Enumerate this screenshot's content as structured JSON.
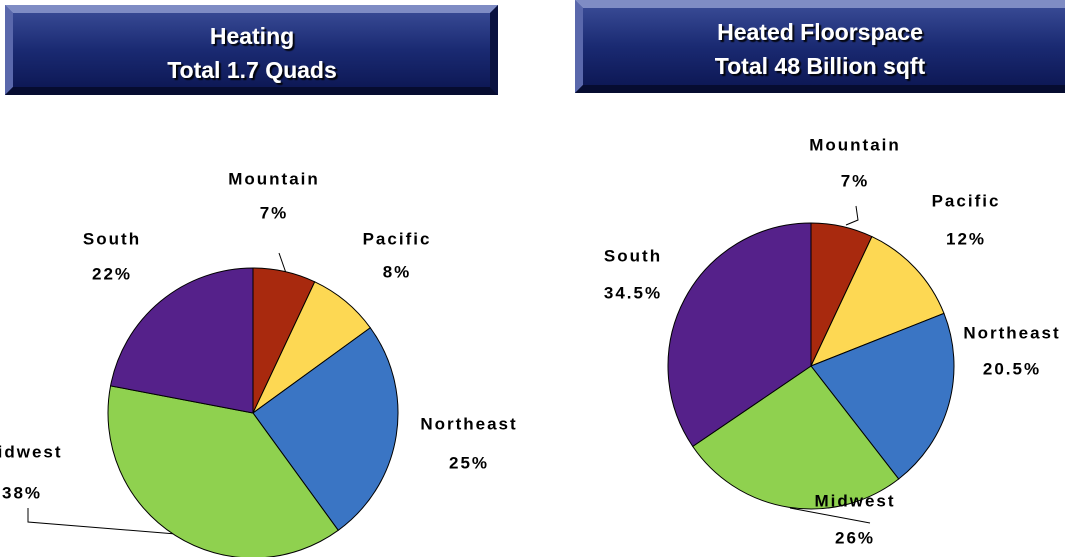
{
  "chart_data": [
    {
      "type": "pie",
      "title": "Heating",
      "subtitle": "Total 1.7 Quads",
      "categories": [
        "Mountain",
        "Pacific",
        "Northeast",
        "Midwest",
        "South"
      ],
      "values": [
        7,
        8,
        25,
        38,
        22
      ],
      "value_labels": [
        "7%",
        "8%",
        "25%",
        "38%",
        "22%"
      ],
      "colors": [
        "#a8290e",
        "#fdd853",
        "#3a75c4",
        "#8fd14f",
        "#55218a"
      ]
    },
    {
      "type": "pie",
      "title": "Heated Floorspace",
      "subtitle": "Total 48 Billion sqft",
      "categories": [
        "Mountain",
        "Pacific",
        "Northeast",
        "Midwest",
        "South"
      ],
      "values": [
        7,
        12,
        20.5,
        26,
        34.5
      ],
      "value_labels": [
        "7%",
        "12%",
        "20.5%",
        "26%",
        "34.5%"
      ],
      "colors": [
        "#a8290e",
        "#fdd853",
        "#3a75c4",
        "#8fd14f",
        "#55218a"
      ]
    }
  ]
}
